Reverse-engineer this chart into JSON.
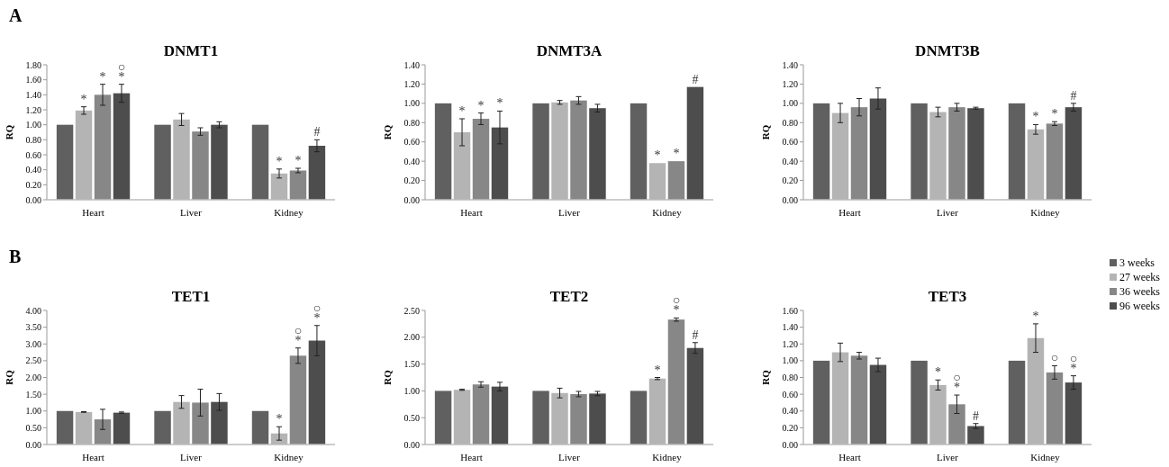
{
  "chart_data": [
    {
      "type": "bar",
      "title": "DNMT1",
      "ylabel": "RQ",
      "annotations": [
        "A"
      ],
      "categories": [
        "Heart",
        "Liver",
        "Kidney"
      ],
      "ylim": [
        0,
        1.8
      ],
      "yticks": [
        {
          "value": 0,
          "label": "0.00"
        },
        {
          "value": 0.2,
          "label": "0.20"
        },
        {
          "value": 0.4,
          "label": "0.40"
        },
        {
          "value": 0.6,
          "label": "0.60"
        },
        {
          "value": 0.8,
          "label": "0.80"
        },
        {
          "value": 1,
          "label": "1.00"
        },
        {
          "value": 1.2,
          "label": "1.20"
        },
        {
          "value": 1.4,
          "label": "1.40"
        },
        {
          "value": 1.6,
          "label": "1.60"
        },
        {
          "value": 1.8,
          "label": "1.80"
        }
      ],
      "grid": false,
      "legend": false,
      "series": [
        {
          "color": "#606060",
          "values": [
            1.0,
            1.0,
            1.0
          ],
          "errors": [
            null,
            null,
            null
          ]
        },
        {
          "color": "#b4b4b4",
          "values": [
            1.19,
            1.07,
            0.35
          ],
          "errors": [
            0.05,
            0.08,
            0.06
          ],
          "value_labels": [
            "*",
            null,
            "*"
          ]
        },
        {
          "color": "#878787",
          "values": [
            1.4,
            0.91,
            0.39
          ],
          "errors": [
            0.14,
            0.05,
            0.03
          ],
          "value_labels": [
            "*",
            null,
            "*"
          ]
        },
        {
          "color": "#4d4d4d",
          "values": [
            1.42,
            1.0,
            0.72
          ],
          "errors": [
            0.12,
            0.04,
            0.08
          ],
          "value_labels": [
            "○\n*",
            null,
            "#"
          ]
        }
      ]
    },
    {
      "type": "bar",
      "title": "DNMT3A",
      "ylabel": "RQ",
      "categories": [
        "Heart",
        "Liver",
        "Kidney"
      ],
      "ylim": [
        0,
        1.4
      ],
      "yticks": [
        {
          "value": 0,
          "label": "0.00"
        },
        {
          "value": 0.2,
          "label": "0.20"
        },
        {
          "value": 0.4,
          "label": "0.40"
        },
        {
          "value": 0.6,
          "label": "0.60"
        },
        {
          "value": 0.8,
          "label": "0.80"
        },
        {
          "value": 1,
          "label": "1.00"
        },
        {
          "value": 1.2,
          "label": "1.20"
        },
        {
          "value": 1.4,
          "label": "1.40"
        }
      ],
      "grid": false,
      "legend": false,
      "series": [
        {
          "color": "#606060",
          "values": [
            1.0,
            1.0,
            1.0
          ],
          "errors": [
            null,
            null,
            null
          ]
        },
        {
          "color": "#b4b4b4",
          "values": [
            0.7,
            1.01,
            0.38
          ],
          "errors": [
            0.14,
            0.02,
            null
          ],
          "value_labels": [
            "*",
            null,
            "*"
          ]
        },
        {
          "color": "#878787",
          "values": [
            0.84,
            1.03,
            0.4
          ],
          "errors": [
            0.06,
            0.04,
            null
          ],
          "value_labels": [
            "*",
            null,
            "*"
          ]
        },
        {
          "color": "#4d4d4d",
          "values": [
            0.75,
            0.95,
            1.17
          ],
          "errors": [
            0.17,
            0.04,
            null
          ],
          "value_labels": [
            "*",
            null,
            "#"
          ]
        }
      ]
    },
    {
      "type": "bar",
      "title": "DNMT3B",
      "ylabel": "RQ",
      "categories": [
        "Heart",
        "Liver",
        "Kidney"
      ],
      "ylim": [
        0,
        1.4
      ],
      "yticks": [
        {
          "value": 0,
          "label": "0.00"
        },
        {
          "value": 0.2,
          "label": "0.20"
        },
        {
          "value": 0.4,
          "label": "0.40"
        },
        {
          "value": 0.6,
          "label": "0.60"
        },
        {
          "value": 0.8,
          "label": "0.80"
        },
        {
          "value": 1,
          "label": "1.00"
        },
        {
          "value": 1.2,
          "label": "1.20"
        },
        {
          "value": 1.4,
          "label": "1.40"
        }
      ],
      "grid": false,
      "legend": false,
      "series": [
        {
          "color": "#606060",
          "values": [
            1.0,
            1.0,
            1.0
          ],
          "errors": [
            null,
            null,
            null
          ]
        },
        {
          "color": "#b4b4b4",
          "values": [
            0.9,
            0.91,
            0.73
          ],
          "errors": [
            0.1,
            0.05,
            0.05
          ],
          "value_labels": [
            null,
            null,
            "*"
          ]
        },
        {
          "color": "#878787",
          "values": [
            0.96,
            0.96,
            0.79
          ],
          "errors": [
            0.09,
            0.04,
            0.02
          ],
          "value_labels": [
            null,
            null,
            "*"
          ]
        },
        {
          "color": "#4d4d4d",
          "values": [
            1.05,
            0.95,
            0.96
          ],
          "errors": [
            0.11,
            0.01,
            0.04
          ],
          "value_labels": [
            null,
            null,
            "#"
          ]
        }
      ]
    },
    {
      "type": "bar",
      "title": "TET1",
      "ylabel": "RQ",
      "annotations": [
        "B"
      ],
      "categories": [
        "Heart",
        "Liver",
        "Kidney"
      ],
      "ylim": [
        0,
        4
      ],
      "yticks": [
        {
          "value": 0,
          "label": "0.00"
        },
        {
          "value": 0.5,
          "label": "0.50"
        },
        {
          "value": 1,
          "label": "1.00"
        },
        {
          "value": 1.5,
          "label": "1.50"
        },
        {
          "value": 2,
          "label": "2.00"
        },
        {
          "value": 2.5,
          "label": "2.50"
        },
        {
          "value": 3,
          "label": "3.00"
        },
        {
          "value": 3.5,
          "label": "3.50"
        },
        {
          "value": 4,
          "label": "4.00"
        }
      ],
      "grid": false,
      "legend": false,
      "series": [
        {
          "color": "#606060",
          "values": [
            1.0,
            1.0,
            1.0
          ],
          "errors": [
            null,
            null,
            null
          ]
        },
        {
          "color": "#b4b4b4",
          "values": [
            0.97,
            1.27,
            0.33
          ],
          "errors": [
            0.01,
            0.19,
            0.2
          ],
          "value_labels": [
            null,
            null,
            "*"
          ]
        },
        {
          "color": "#878787",
          "values": [
            0.75,
            1.25,
            2.65
          ],
          "errors": [
            0.3,
            0.4,
            0.23
          ],
          "value_labels": [
            null,
            null,
            "○\n*"
          ]
        },
        {
          "color": "#4d4d4d",
          "values": [
            0.95,
            1.27,
            3.1
          ],
          "errors": [
            0.02,
            0.25,
            0.45
          ],
          "value_labels": [
            null,
            null,
            "○\n*"
          ]
        }
      ]
    },
    {
      "type": "bar",
      "title": "TET2",
      "ylabel": "RQ",
      "categories": [
        "Heart",
        "Liver",
        "Kidney"
      ],
      "ylim": [
        0,
        2.5
      ],
      "yticks": [
        {
          "value": 0,
          "label": "0.00"
        },
        {
          "value": 0.5,
          "label": "0.50"
        },
        {
          "value": 1,
          "label": "1.00"
        },
        {
          "value": 1.5,
          "label": "1.50"
        },
        {
          "value": 2,
          "label": "2.00"
        },
        {
          "value": 2.5,
          "label": "2.50"
        }
      ],
      "grid": false,
      "legend": false,
      "series": [
        {
          "color": "#606060",
          "values": [
            1.0,
            1.0,
            1.0
          ],
          "errors": [
            null,
            null,
            null
          ]
        },
        {
          "color": "#b4b4b4",
          "values": [
            1.02,
            0.96,
            1.23
          ],
          "errors": [
            0.01,
            0.09,
            0.02
          ],
          "value_labels": [
            null,
            null,
            "*"
          ]
        },
        {
          "color": "#878787",
          "values": [
            1.12,
            0.94,
            2.33
          ],
          "errors": [
            0.05,
            0.05,
            0.03
          ],
          "value_labels": [
            null,
            null,
            "○\n*"
          ]
        },
        {
          "color": "#4d4d4d",
          "values": [
            1.08,
            0.95,
            1.8
          ],
          "errors": [
            0.08,
            0.04,
            0.1
          ],
          "value_labels": [
            null,
            null,
            "#"
          ]
        }
      ]
    },
    {
      "type": "bar",
      "title": "TET3",
      "ylabel": "RQ",
      "categories": [
        "Heart",
        "Liver",
        "Kidney"
      ],
      "ylim": [
        0,
        1.6
      ],
      "yticks": [
        {
          "value": 0,
          "label": "0.00"
        },
        {
          "value": 0.2,
          "label": "0.20"
        },
        {
          "value": 0.4,
          "label": "0.40"
        },
        {
          "value": 0.6,
          "label": "0.60"
        },
        {
          "value": 0.8,
          "label": "0.80"
        },
        {
          "value": 1,
          "label": "1.00"
        },
        {
          "value": 1.2,
          "label": "1.20"
        },
        {
          "value": 1.4,
          "label": "1.40"
        },
        {
          "value": 1.6,
          "label": "1.60"
        }
      ],
      "grid": false,
      "legend": "right",
      "series": [
        {
          "name": "3 weeks",
          "color": "#606060",
          "values": [
            1.0,
            1.0,
            1.0
          ],
          "errors": [
            null,
            null,
            null
          ]
        },
        {
          "name": "27 weeks",
          "color": "#b4b4b4",
          "values": [
            1.1,
            0.71,
            1.27
          ],
          "errors": [
            0.11,
            0.06,
            0.17
          ],
          "value_labels": [
            null,
            "*",
            "*"
          ]
        },
        {
          "name": "36 weeks",
          "color": "#878787",
          "values": [
            1.06,
            0.48,
            0.86
          ],
          "errors": [
            0.04,
            0.11,
            0.08
          ],
          "value_labels": [
            null,
            "○\n*",
            "○"
          ]
        },
        {
          "name": "96 weeks",
          "color": "#4d4d4d",
          "values": [
            0.95,
            0.22,
            0.74
          ],
          "errors": [
            0.08,
            0.03,
            0.08
          ],
          "value_labels": [
            null,
            "#",
            "○\n*"
          ]
        }
      ]
    }
  ]
}
